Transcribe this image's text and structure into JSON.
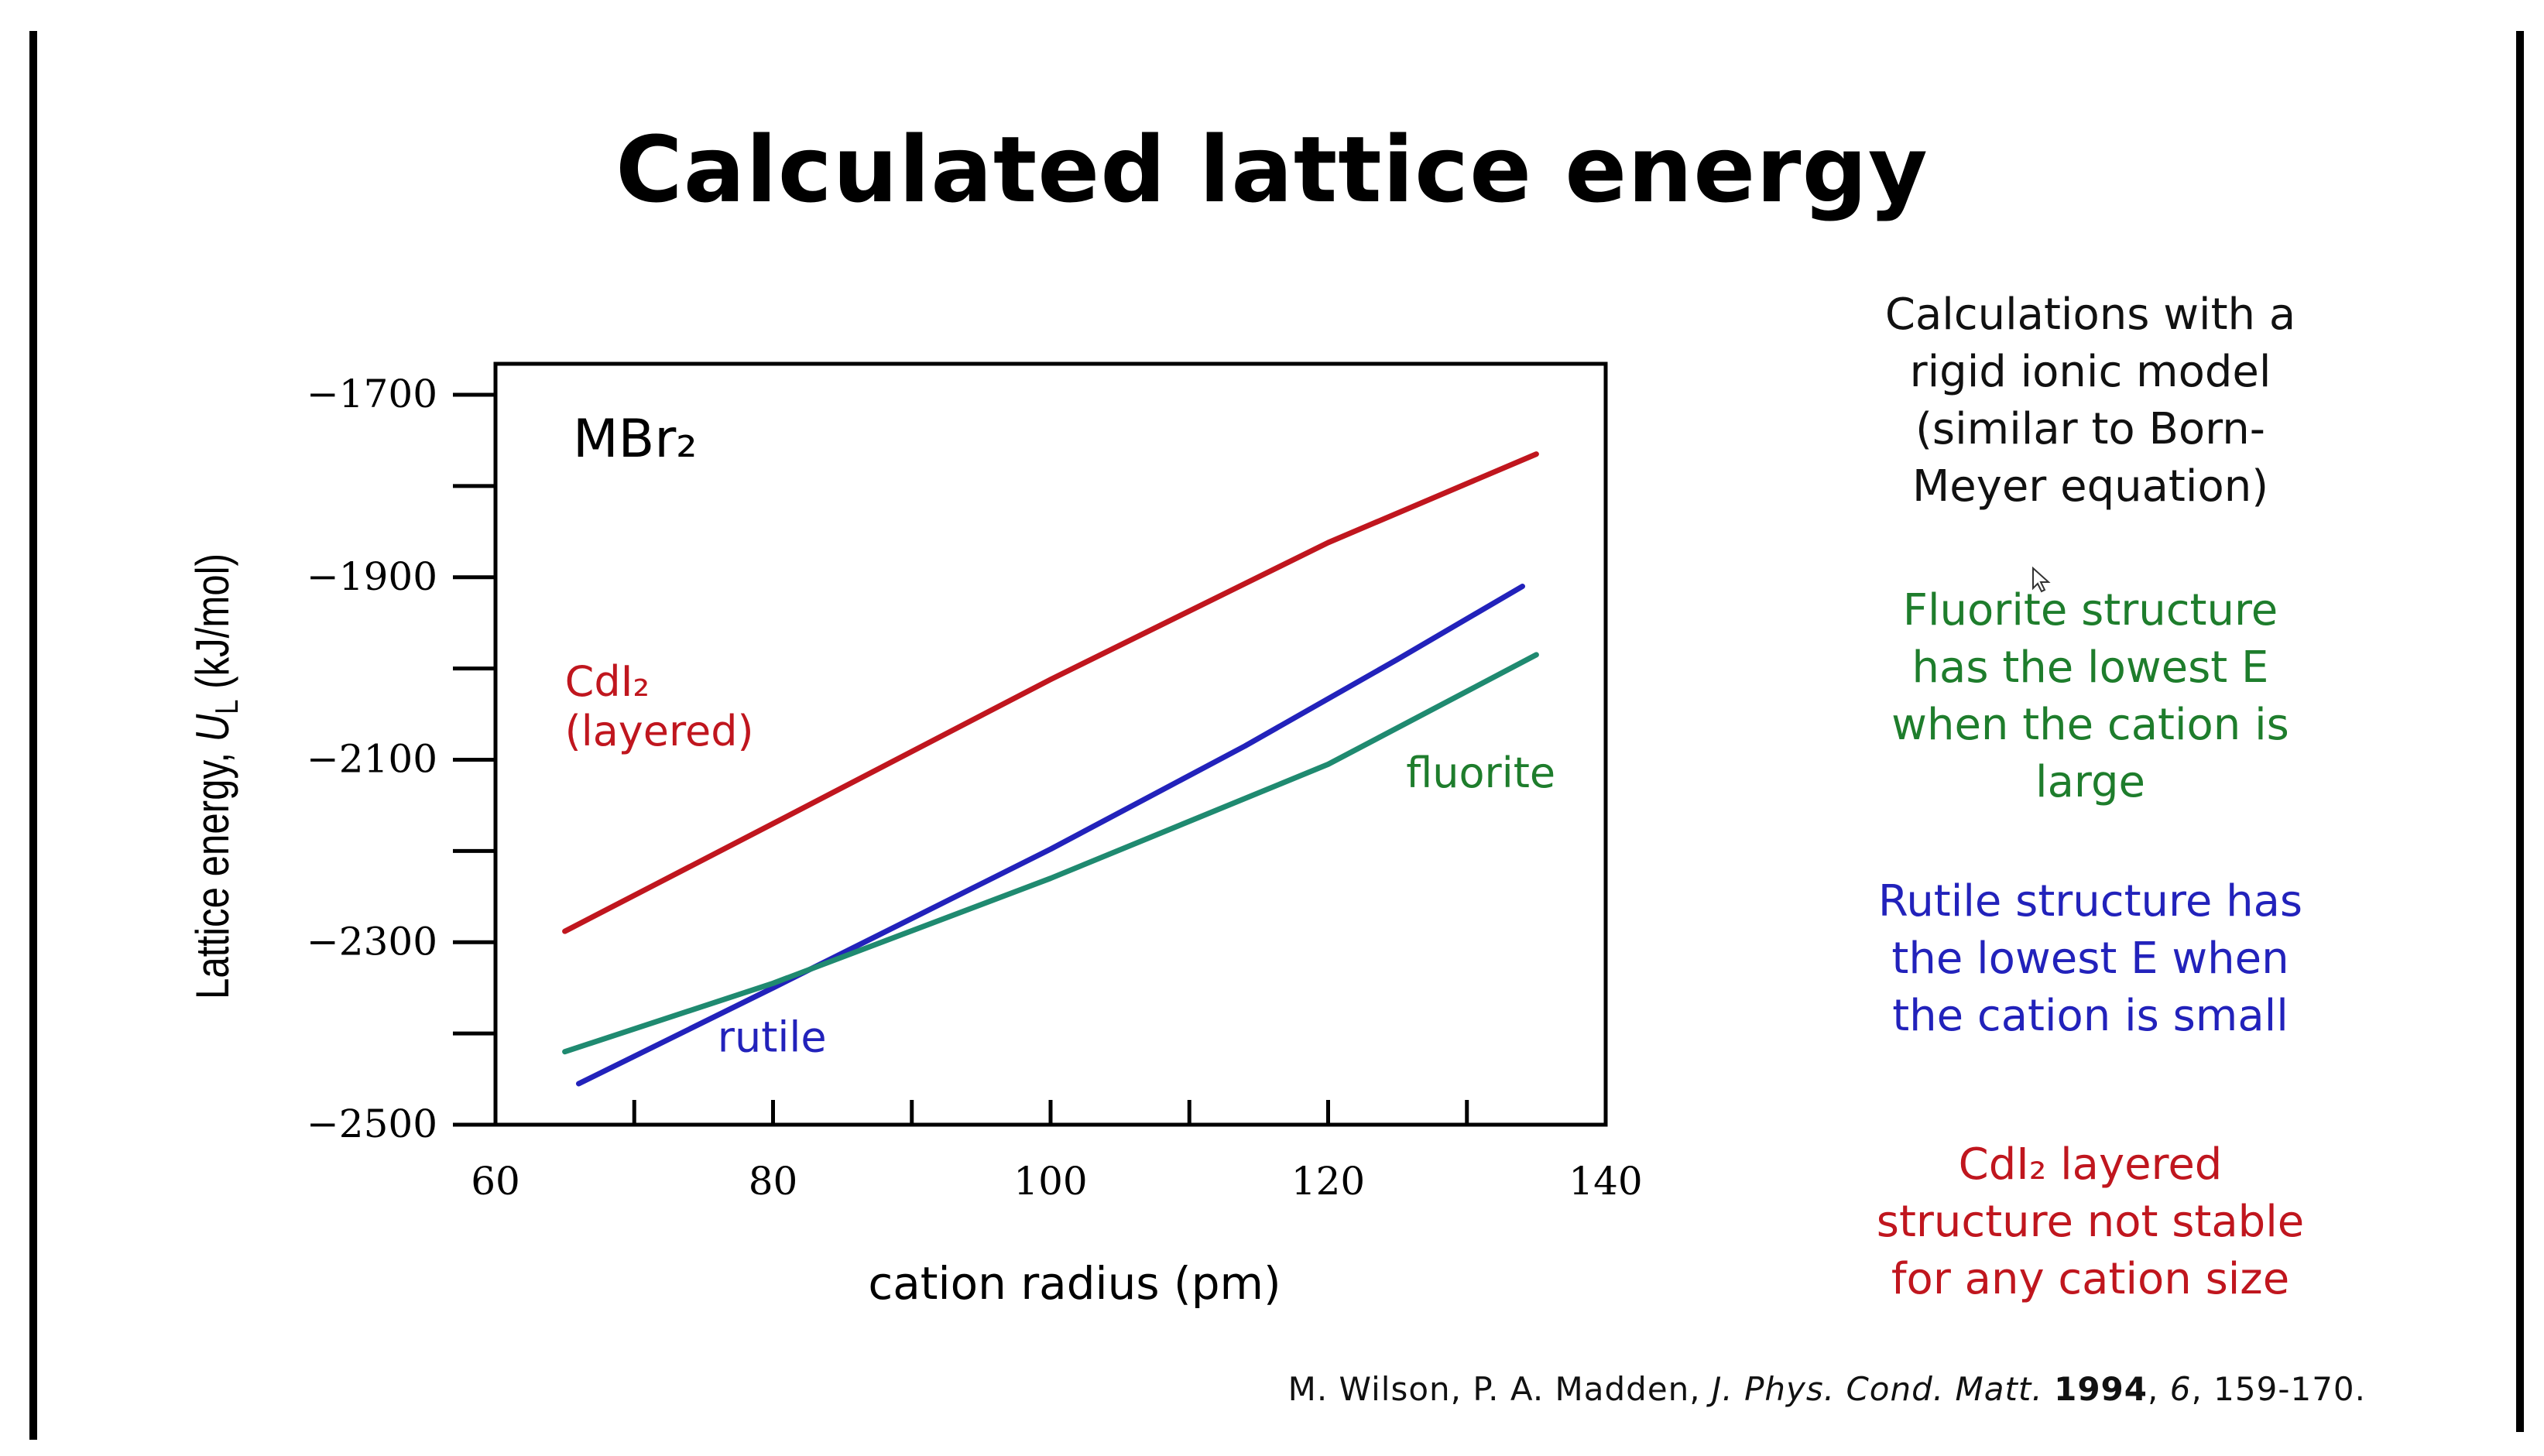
{
  "slide": {
    "title": "Calculated lattice energy",
    "notes": {
      "rigid_lines": [
        "Calculations with a",
        "rigid ionic model",
        "(similar to Born-",
        "Meyer equation)"
      ],
      "fluorite_lines": [
        "Fluorite structure",
        "has the lowest E",
        "when the cation is",
        "large"
      ],
      "rutile_lines": [
        "Rutile structure has",
        "the lowest E when",
        "the cation is small"
      ],
      "cdi2_lines": [
        "CdI₂ layered",
        "structure not stable",
        "for any cation size"
      ]
    },
    "citation": {
      "authors": "M. Wilson, P. A. Madden, ",
      "journal": "J. Phys. Cond. Matt.",
      "year": "1994",
      "volume": "6",
      "pages": ", 159-170."
    },
    "colors": {
      "cdi2": "#c0161e",
      "rutile": "#2222bb",
      "fluorite": "#1f8a70",
      "fluorite_text": "#1e7d2c"
    }
  },
  "chart_data": {
    "type": "line",
    "panel_label": "MBr₂",
    "xlabel": "cation radius (pm)",
    "ylabel": "Lattice energy, U_L (kJ/mol)",
    "xlim": [
      60,
      140
    ],
    "ylim": [
      -2500,
      -1620
    ],
    "x_ticks": [
      60,
      80,
      100,
      120,
      140
    ],
    "x_minor_ticks": [
      70,
      90,
      110,
      130
    ],
    "y_ticks": [
      -1700,
      -1900,
      -2100,
      -2300,
      -2500
    ],
    "y_tick_labels": [
      "−1700",
      "−1900",
      "−2100",
      "−2300",
      "−2500"
    ],
    "y_minor_ticks": [
      -1800,
      -2000,
      -2200,
      -2400
    ],
    "grid": false,
    "series": [
      {
        "name": "CdI₂ (layered)",
        "label_lines": [
          "CdI₂",
          "(layered)"
        ],
        "color": "#c0161e",
        "x": [
          65,
          80,
          100,
          120,
          135
        ],
        "y": [
          -2288,
          -2170,
          -2012,
          -1862,
          -1765
        ]
      },
      {
        "name": "rutile",
        "label_lines": [
          "rutile"
        ],
        "color": "#2222bb",
        "x": [
          66,
          80,
          100,
          114,
          125,
          134
        ],
        "y": [
          -2455,
          -2350,
          -2198,
          -2085,
          -1990,
          -1910
        ]
      },
      {
        "name": "fluorite",
        "label_lines": [
          "fluorite"
        ],
        "color": "#1f8a70",
        "x": [
          65,
          80,
          100,
          120,
          135
        ],
        "y": [
          -2420,
          -2345,
          -2230,
          -2105,
          -1985
        ]
      }
    ]
  }
}
